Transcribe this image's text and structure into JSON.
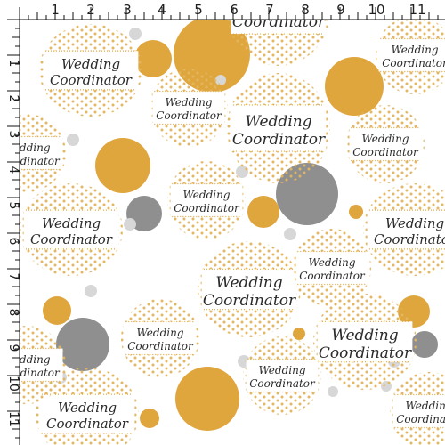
{
  "pattern": {
    "badge_text": {
      "line1": "Wedding",
      "line2": "Coordinator"
    },
    "colors": {
      "gold": "#e0a63e",
      "gray": "#8f8f8f",
      "light_gray": "#d7d7d7",
      "dot_gold": "#e2b660",
      "ruler": "#111111",
      "text": "#2a2a2a"
    }
  },
  "ruler": {
    "top_labels": [
      "1",
      "2",
      "3",
      "4",
      "5",
      "6",
      "7",
      "8",
      "9",
      "10",
      "11"
    ],
    "left_labels": [
      "1",
      "2",
      "3",
      "4",
      "5",
      "6",
      "7",
      "8",
      "9",
      "10",
      "11"
    ]
  }
}
